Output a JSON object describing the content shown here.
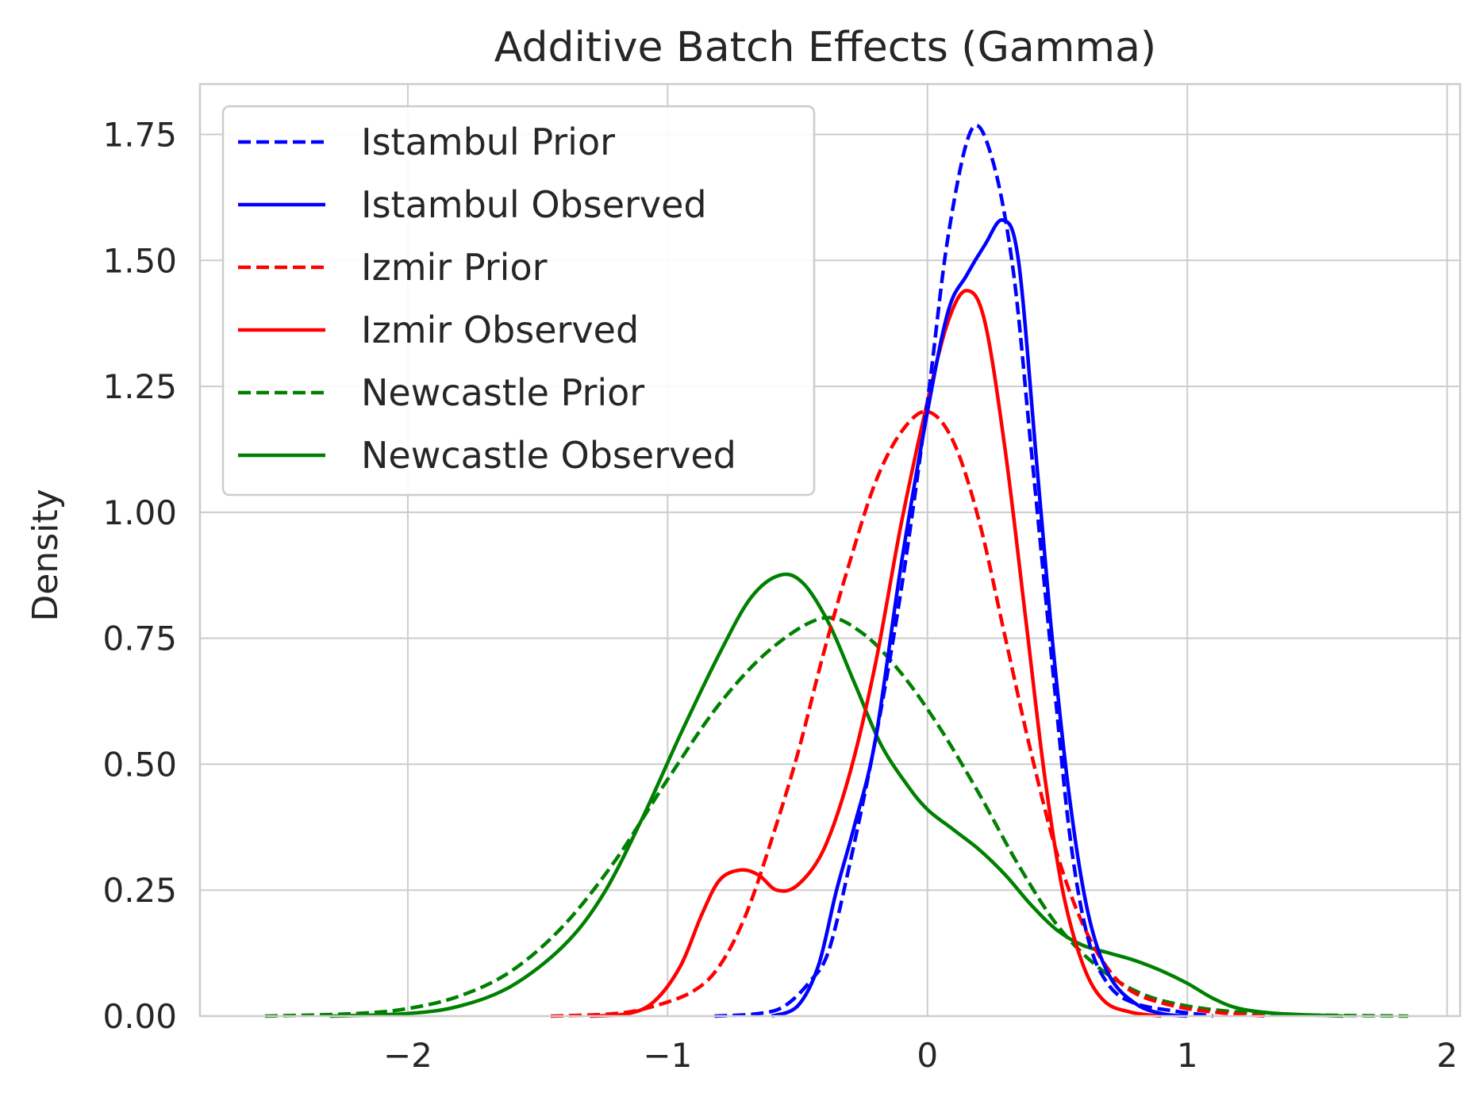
{
  "chart_data": {
    "type": "line",
    "title": "Additive Batch Effects (Gamma)",
    "xlabel": "",
    "ylabel": "Density",
    "xlim": [
      -2.8,
      2.05
    ],
    "ylim": [
      0,
      1.85
    ],
    "xticks": [
      -2,
      -1,
      0,
      1,
      2
    ],
    "xtick_labels": [
      "−2",
      "−1",
      "0",
      "1",
      "2"
    ],
    "yticks": [
      0,
      0.25,
      0.5,
      0.75,
      1.0,
      1.25,
      1.5,
      1.75
    ],
    "ytick_labels": [
      "0.00",
      "0.25",
      "0.50",
      "0.75",
      "1.00",
      "1.25",
      "1.50",
      "1.75"
    ],
    "grid": true,
    "legend_position": "top-left",
    "series": [
      {
        "name": "Istambul Prior",
        "color": "#0000ff",
        "style": "dashed",
        "points": [
          [
            -0.82,
            0
          ],
          [
            -0.65,
            0.005
          ],
          [
            -0.55,
            0.02
          ],
          [
            -0.45,
            0.07
          ],
          [
            -0.38,
            0.13
          ],
          [
            -0.3,
            0.3
          ],
          [
            -0.2,
            0.55
          ],
          [
            -0.1,
            0.85
          ],
          [
            0,
            1.22
          ],
          [
            0.08,
            1.55
          ],
          [
            0.17,
            1.76
          ],
          [
            0.25,
            1.7
          ],
          [
            0.33,
            1.48
          ],
          [
            0.4,
            1.12
          ],
          [
            0.48,
            0.7
          ],
          [
            0.55,
            0.35
          ],
          [
            0.62,
            0.15
          ],
          [
            0.7,
            0.06
          ],
          [
            0.8,
            0.025
          ],
          [
            0.95,
            0.01
          ],
          [
            1.1,
            0
          ]
        ]
      },
      {
        "name": "Istambul Observed",
        "color": "#0000ff",
        "style": "solid",
        "points": [
          [
            -0.6,
            0
          ],
          [
            -0.5,
            0.02
          ],
          [
            -0.42,
            0.1
          ],
          [
            -0.35,
            0.25
          ],
          [
            -0.28,
            0.38
          ],
          [
            -0.2,
            0.55
          ],
          [
            -0.1,
            0.9
          ],
          [
            0,
            1.2
          ],
          [
            0.08,
            1.4
          ],
          [
            0.15,
            1.47
          ],
          [
            0.22,
            1.53
          ],
          [
            0.29,
            1.58
          ],
          [
            0.35,
            1.5
          ],
          [
            0.42,
            1.1
          ],
          [
            0.48,
            0.75
          ],
          [
            0.55,
            0.42
          ],
          [
            0.62,
            0.2
          ],
          [
            0.7,
            0.08
          ],
          [
            0.8,
            0.025
          ],
          [
            0.9,
            0.005
          ],
          [
            1.0,
            0
          ]
        ]
      },
      {
        "name": "Izmir Prior",
        "color": "#ff0000",
        "style": "dashed",
        "points": [
          [
            -1.45,
            0
          ],
          [
            -1.2,
            0.005
          ],
          [
            -1.05,
            0.02
          ],
          [
            -0.9,
            0.05
          ],
          [
            -0.8,
            0.1
          ],
          [
            -0.7,
            0.2
          ],
          [
            -0.6,
            0.35
          ],
          [
            -0.5,
            0.52
          ],
          [
            -0.4,
            0.72
          ],
          [
            -0.3,
            0.9
          ],
          [
            -0.2,
            1.06
          ],
          [
            -0.1,
            1.16
          ],
          [
            0,
            1.2
          ],
          [
            0.1,
            1.14
          ],
          [
            0.2,
            0.98
          ],
          [
            0.3,
            0.75
          ],
          [
            0.4,
            0.52
          ],
          [
            0.5,
            0.32
          ],
          [
            0.6,
            0.18
          ],
          [
            0.7,
            0.09
          ],
          [
            0.8,
            0.045
          ],
          [
            0.95,
            0.02
          ],
          [
            1.1,
            0.008
          ],
          [
            1.3,
            0
          ]
        ]
      },
      {
        "name": "Izmir Observed",
        "color": "#ff0000",
        "style": "solid",
        "points": [
          [
            -1.3,
            0
          ],
          [
            -1.15,
            0.005
          ],
          [
            -1.05,
            0.03
          ],
          [
            -0.95,
            0.1
          ],
          [
            -0.87,
            0.2
          ],
          [
            -0.8,
            0.27
          ],
          [
            -0.72,
            0.29
          ],
          [
            -0.65,
            0.28
          ],
          [
            -0.58,
            0.25
          ],
          [
            -0.5,
            0.26
          ],
          [
            -0.4,
            0.33
          ],
          [
            -0.3,
            0.48
          ],
          [
            -0.2,
            0.7
          ],
          [
            -0.1,
            0.98
          ],
          [
            0,
            1.22
          ],
          [
            0.08,
            1.38
          ],
          [
            0.15,
            1.44
          ],
          [
            0.22,
            1.38
          ],
          [
            0.3,
            1.12
          ],
          [
            0.38,
            0.78
          ],
          [
            0.45,
            0.48
          ],
          [
            0.52,
            0.25
          ],
          [
            0.6,
            0.1
          ],
          [
            0.68,
            0.03
          ],
          [
            0.78,
            0.008
          ],
          [
            0.9,
            0
          ]
        ]
      },
      {
        "name": "Newcastle Prior",
        "color": "#008000",
        "style": "dashed",
        "points": [
          [
            -2.55,
            0
          ],
          [
            -2.2,
            0.005
          ],
          [
            -2.0,
            0.015
          ],
          [
            -1.8,
            0.04
          ],
          [
            -1.6,
            0.09
          ],
          [
            -1.4,
            0.18
          ],
          [
            -1.2,
            0.31
          ],
          [
            -1.0,
            0.47
          ],
          [
            -0.8,
            0.62
          ],
          [
            -0.6,
            0.73
          ],
          [
            -0.4,
            0.79
          ],
          [
            -0.25,
            0.76
          ],
          [
            -0.1,
            0.68
          ],
          [
            0.05,
            0.57
          ],
          [
            0.2,
            0.44
          ],
          [
            0.35,
            0.3
          ],
          [
            0.5,
            0.18
          ],
          [
            0.65,
            0.1
          ],
          [
            0.8,
            0.05
          ],
          [
            0.95,
            0.025
          ],
          [
            1.15,
            0.01
          ],
          [
            1.4,
            0.003
          ],
          [
            1.85,
            0
          ]
        ]
      },
      {
        "name": "Newcastle Observed",
        "color": "#008000",
        "style": "solid",
        "points": [
          [
            -2.3,
            0
          ],
          [
            -2.0,
            0.005
          ],
          [
            -1.8,
            0.02
          ],
          [
            -1.6,
            0.06
          ],
          [
            -1.4,
            0.14
          ],
          [
            -1.25,
            0.24
          ],
          [
            -1.1,
            0.39
          ],
          [
            -0.95,
            0.56
          ],
          [
            -0.8,
            0.72
          ],
          [
            -0.68,
            0.83
          ],
          [
            -0.57,
            0.875
          ],
          [
            -0.48,
            0.86
          ],
          [
            -0.38,
            0.78
          ],
          [
            -0.28,
            0.66
          ],
          [
            -0.18,
            0.54
          ],
          [
            -0.08,
            0.46
          ],
          [
            0,
            0.41
          ],
          [
            0.1,
            0.37
          ],
          [
            0.2,
            0.33
          ],
          [
            0.3,
            0.28
          ],
          [
            0.4,
            0.22
          ],
          [
            0.5,
            0.17
          ],
          [
            0.6,
            0.14
          ],
          [
            0.7,
            0.125
          ],
          [
            0.8,
            0.11
          ],
          [
            0.9,
            0.09
          ],
          [
            1.0,
            0.065
          ],
          [
            1.1,
            0.035
          ],
          [
            1.2,
            0.015
          ],
          [
            1.35,
            0.005
          ],
          [
            1.6,
            0
          ]
        ]
      }
    ]
  }
}
